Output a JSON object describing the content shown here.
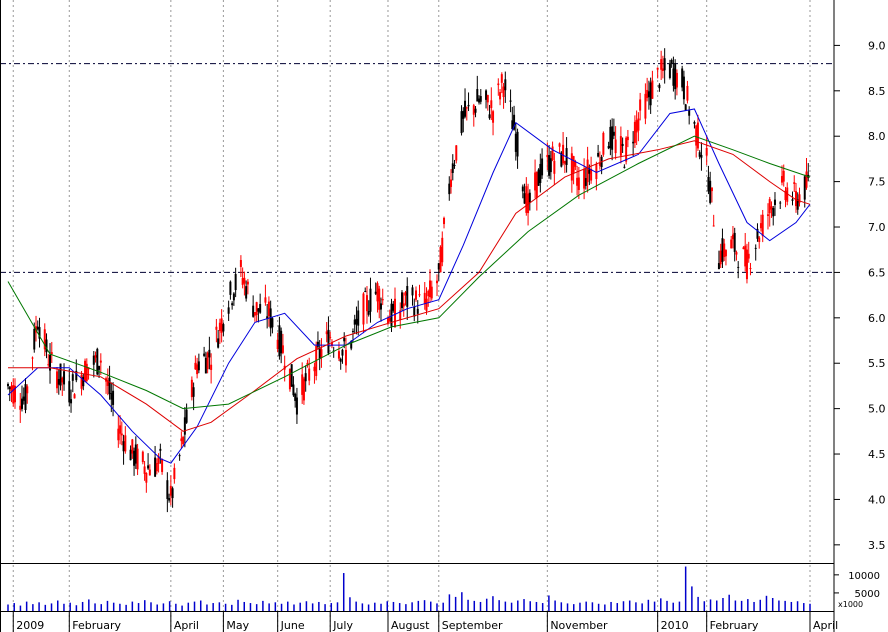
{
  "chart_data": {
    "type": "candlestick",
    "title": "",
    "xlabel": "",
    "ylabel": "",
    "ylim": [
      3.3,
      9.5
    ],
    "yticks": [
      "9.0",
      "8.5",
      "8.0",
      "7.5",
      "7.0",
      "6.5",
      "6.0",
      "5.5",
      "5.0",
      "4.5",
      "4.0",
      "3.5"
    ],
    "yticks_values": [
      9.0,
      8.5,
      8.0,
      7.5,
      7.0,
      6.5,
      6.0,
      5.5,
      5.0,
      4.5,
      4.0,
      3.5
    ],
    "xticks": [
      "2009",
      "February",
      "April",
      "May",
      "June",
      "July",
      "August",
      "September",
      "November",
      "2010",
      "February",
      "April"
    ],
    "xticks_dates": [
      "2009-01-01",
      "2009-02-02",
      "2009-04-01",
      "2009-05-01",
      "2009-06-01",
      "2009-07-01",
      "2009-08-03",
      "2009-09-01",
      "2009-11-02",
      "2010-01-04",
      "2010-02-01",
      "2010-04-01"
    ],
    "x_range": [
      "2008-12-29",
      "2010-04-01"
    ],
    "horizontal_lines": [
      8.8,
      6.5
    ],
    "close_series": [
      [
        "2008-12-29",
        5.25
      ],
      [
        "2009-01-08",
        5.1
      ],
      [
        "2009-01-15",
        6.0
      ],
      [
        "2009-01-22",
        5.5
      ],
      [
        "2009-02-02",
        5.2
      ],
      [
        "2009-02-12",
        5.45
      ],
      [
        "2009-02-20",
        5.55
      ],
      [
        "2009-03-02",
        4.8
      ],
      [
        "2009-03-10",
        4.5
      ],
      [
        "2009-03-18",
        4.35
      ],
      [
        "2009-03-26",
        4.4
      ],
      [
        "2009-04-01",
        4.0
      ],
      [
        "2009-04-08",
        4.65
      ],
      [
        "2009-04-16",
        5.5
      ],
      [
        "2009-04-24",
        5.6
      ],
      [
        "2009-05-04",
        6.2
      ],
      [
        "2009-05-11",
        6.5
      ],
      [
        "2009-05-19",
        6.1
      ],
      [
        "2009-05-27",
        6.05
      ],
      [
        "2009-06-05",
        5.6
      ],
      [
        "2009-06-12",
        5.1
      ],
      [
        "2009-06-22",
        5.5
      ],
      [
        "2009-07-01",
        5.8
      ],
      [
        "2009-07-10",
        5.6
      ],
      [
        "2009-07-20",
        6.1
      ],
      [
        "2009-07-28",
        6.3
      ],
      [
        "2009-08-05",
        6.0
      ],
      [
        "2009-08-14",
        6.2
      ],
      [
        "2009-08-24",
        6.15
      ],
      [
        "2009-09-01",
        6.45
      ],
      [
        "2009-09-08",
        7.6
      ],
      [
        "2009-09-15",
        8.2
      ],
      [
        "2009-09-24",
        8.4
      ],
      [
        "2009-10-02",
        8.3
      ],
      [
        "2009-10-08",
        8.6
      ],
      [
        "2009-10-15",
        8.0
      ],
      [
        "2009-10-22",
        7.2
      ],
      [
        "2009-10-29",
        7.6
      ],
      [
        "2009-11-05",
        7.75
      ],
      [
        "2009-11-12",
        7.8
      ],
      [
        "2009-11-20",
        7.5
      ],
      [
        "2009-11-30",
        7.7
      ],
      [
        "2009-12-07",
        8.0
      ],
      [
        "2009-12-16",
        7.8
      ],
      [
        "2009-12-24",
        8.2
      ],
      [
        "2010-01-04",
        8.65
      ],
      [
        "2010-01-11",
        8.75
      ],
      [
        "2010-01-18",
        8.6
      ],
      [
        "2010-01-25",
        8.1
      ],
      [
        "2010-02-01",
        7.7
      ],
      [
        "2010-02-08",
        6.7
      ],
      [
        "2010-02-16",
        6.8
      ],
      [
        "2010-02-24",
        6.6
      ],
      [
        "2010-03-02",
        6.9
      ],
      [
        "2010-03-09",
        7.2
      ],
      [
        "2010-03-17",
        7.45
      ],
      [
        "2010-03-24",
        7.3
      ],
      [
        "2010-04-01",
        7.5
      ]
    ],
    "series": [
      {
        "color": "#0000dd",
        "points": [
          [
            "2008-12-29",
            5.15
          ],
          [
            "2009-01-15",
            5.45
          ],
          [
            "2009-02-02",
            5.45
          ],
          [
            "2009-02-20",
            5.15
          ],
          [
            "2009-03-10",
            4.75
          ],
          [
            "2009-03-26",
            4.45
          ],
          [
            "2009-04-01",
            4.4
          ],
          [
            "2009-04-16",
            4.8
          ],
          [
            "2009-05-04",
            5.5
          ],
          [
            "2009-05-19",
            5.95
          ],
          [
            "2009-06-05",
            6.05
          ],
          [
            "2009-06-22",
            5.7
          ],
          [
            "2009-07-10",
            5.7
          ],
          [
            "2009-07-28",
            5.95
          ],
          [
            "2009-08-14",
            6.1
          ],
          [
            "2009-09-01",
            6.2
          ],
          [
            "2009-09-15",
            6.8
          ],
          [
            "2009-10-02",
            7.6
          ],
          [
            "2009-10-15",
            8.15
          ],
          [
            "2009-11-05",
            7.85
          ],
          [
            "2009-11-30",
            7.6
          ],
          [
            "2009-12-24",
            7.8
          ],
          [
            "2010-01-11",
            8.25
          ],
          [
            "2010-01-25",
            8.3
          ],
          [
            "2010-02-08",
            7.7
          ],
          [
            "2010-02-24",
            7.05
          ],
          [
            "2010-03-09",
            6.85
          ],
          [
            "2010-03-24",
            7.05
          ],
          [
            "2010-04-01",
            7.25
          ]
        ]
      },
      {
        "color": "#dd0000",
        "points": [
          [
            "2008-12-29",
            5.45
          ],
          [
            "2009-01-22",
            5.45
          ],
          [
            "2009-02-20",
            5.35
          ],
          [
            "2009-03-18",
            5.05
          ],
          [
            "2009-04-08",
            4.75
          ],
          [
            "2009-04-24",
            4.85
          ],
          [
            "2009-05-19",
            5.2
          ],
          [
            "2009-06-12",
            5.55
          ],
          [
            "2009-07-10",
            5.8
          ],
          [
            "2009-08-05",
            5.95
          ],
          [
            "2009-09-01",
            6.1
          ],
          [
            "2009-09-24",
            6.5
          ],
          [
            "2009-10-15",
            7.15
          ],
          [
            "2009-11-12",
            7.55
          ],
          [
            "2009-12-07",
            7.75
          ],
          [
            "2010-01-04",
            7.85
          ],
          [
            "2010-01-25",
            7.95
          ],
          [
            "2010-02-16",
            7.8
          ],
          [
            "2010-03-09",
            7.5
          ],
          [
            "2010-03-24",
            7.3
          ],
          [
            "2010-04-01",
            7.25
          ]
        ]
      },
      {
        "color": "#007700",
        "points": [
          [
            "2008-12-29",
            6.4
          ],
          [
            "2009-01-22",
            5.6
          ],
          [
            "2009-02-20",
            5.4
          ],
          [
            "2009-03-18",
            5.2
          ],
          [
            "2009-04-08",
            5.0
          ],
          [
            "2009-05-04",
            5.05
          ],
          [
            "2009-06-05",
            5.35
          ],
          [
            "2009-07-10",
            5.7
          ],
          [
            "2009-08-05",
            5.9
          ],
          [
            "2009-09-01",
            6.0
          ],
          [
            "2009-09-24",
            6.45
          ],
          [
            "2009-10-22",
            6.95
          ],
          [
            "2009-11-20",
            7.35
          ],
          [
            "2009-12-24",
            7.7
          ],
          [
            "2010-01-25",
            8.0
          ],
          [
            "2010-02-16",
            7.85
          ],
          [
            "2010-03-09",
            7.7
          ],
          [
            "2010-04-01",
            7.55
          ]
        ]
      }
    ],
    "volume": {
      "yticks": [
        "10000",
        "5000"
      ],
      "yticks_values": [
        10000,
        5000
      ],
      "unit_label": "x1000",
      "values": [
        1800,
        2200,
        1500,
        2600,
        1900,
        2400,
        1700,
        2100,
        2900,
        2000,
        2300,
        1600,
        2500,
        3200,
        2100,
        1900,
        2800,
        2300,
        2000,
        1700,
        2600,
        2200,
        3000,
        2400,
        1800,
        2100,
        2700,
        2000,
        1500,
        2300,
        2600,
        2900,
        1800,
        2200,
        2400,
        2000,
        1700,
        3100,
        2500,
        2200,
        1900,
        2800,
        2100,
        2400,
        2000,
        2600,
        1800,
        2300,
        2700,
        2100,
        2500,
        1900,
        2200,
        2400,
        10500,
        3800,
        2600,
        2100,
        1800,
        2300,
        2000,
        2700,
        2500,
        2200,
        1900,
        2400,
        2800,
        3000,
        2600,
        2100,
        2300,
        4600,
        3900,
        5200,
        3100,
        2800,
        2500,
        3400,
        4100,
        3000,
        2600,
        2300,
        2900,
        3300,
        2700,
        2500,
        2200,
        4300,
        2900,
        2400,
        2100,
        1900,
        2300,
        2600,
        2400,
        2000,
        1800,
        2500,
        2200,
        2700,
        2900,
        2400,
        2100,
        3100,
        2600,
        3500,
        2800,
        2300,
        2600,
        12300,
        6800,
        3900,
        2700,
        3200,
        2900,
        3600,
        4500,
        2900,
        2800,
        3300,
        2500,
        3100,
        4200,
        3600,
        2900,
        2800,
        2500,
        2700,
        2200,
        2000
      ]
    }
  }
}
